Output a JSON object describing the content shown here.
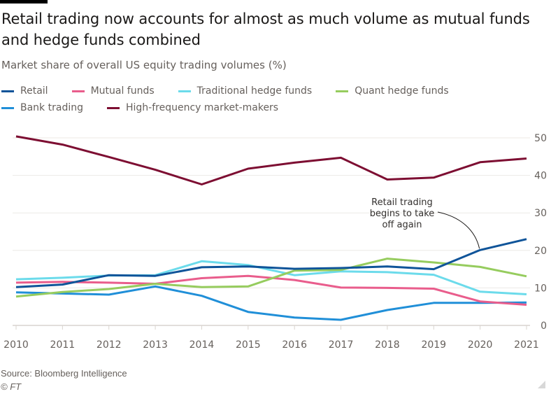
{
  "chart_data": {
    "type": "line",
    "title": "Retail trading now accounts for almost as much volume as mutual funds and hedge funds combined",
    "subtitle": "Market share of overall US equity trading volumes (%)",
    "xlabel": "",
    "ylabel": "",
    "x": [
      2010,
      2011,
      2012,
      2013,
      2014,
      2015,
      2016,
      2017,
      2018,
      2019,
      2020,
      2021
    ],
    "x_tick_labels": [
      "2010",
      "2011",
      "2012",
      "2013",
      "2014",
      "2015",
      "2016",
      "2017",
      "2018",
      "2019",
      "2020",
      "2021"
    ],
    "ylim": [
      0,
      50
    ],
    "y_ticks": [
      0,
      10,
      20,
      30,
      40,
      50
    ],
    "y_tick_labels": [
      "0",
      "10",
      "20",
      "30",
      "40",
      "50"
    ],
    "y_axis_side": "right",
    "grid": true,
    "legend_position": "top-left",
    "series": [
      {
        "name": "Retail",
        "color": "#0f5499",
        "values": [
          10.2,
          10.9,
          13.4,
          13.2,
          15.5,
          15.7,
          15.1,
          15.3,
          15.7,
          15.0,
          20.1,
          23.0
        ]
      },
      {
        "name": "Mutual funds",
        "color": "#e95d8c",
        "values": [
          11.4,
          11.6,
          11.4,
          11.1,
          12.6,
          13.2,
          12.1,
          10.1,
          10.0,
          9.8,
          6.4,
          5.5
        ]
      },
      {
        "name": "Traditional hedge funds",
        "color": "#6cdbeb",
        "values": [
          12.3,
          12.7,
          13.3,
          13.4,
          17.1,
          16.1,
          13.4,
          14.4,
          14.2,
          13.5,
          9.0,
          8.3
        ]
      },
      {
        "name": "Quant hedge funds",
        "color": "#96cc5e",
        "values": [
          7.7,
          8.9,
          9.7,
          11.1,
          10.2,
          10.4,
          14.6,
          14.8,
          17.8,
          16.8,
          15.6,
          13.1
        ]
      },
      {
        "name": "Bank trading",
        "color": "#208fd8",
        "values": [
          8.8,
          8.5,
          8.2,
          10.4,
          7.9,
          3.6,
          2.1,
          1.5,
          4.1,
          6.0,
          6.0,
          6.1
        ]
      },
      {
        "name": "High-frequency market-makers",
        "color": "#7d0e32",
        "values": [
          50.4,
          48.2,
          44.9,
          41.5,
          37.6,
          41.8,
          43.4,
          44.7,
          38.9,
          39.4,
          43.5,
          44.5
        ]
      }
    ],
    "annotations": [
      {
        "text_lines": [
          "Retail trading",
          "begins to take",
          "off again"
        ],
        "target_series": "Retail",
        "target_x": 2020
      }
    ]
  },
  "legend_rows": [
    [
      0,
      1,
      2,
      3
    ],
    [
      4,
      5
    ]
  ],
  "footer": {
    "source": "Source: Bloomberg Intelligence",
    "copyright": "© FT"
  }
}
